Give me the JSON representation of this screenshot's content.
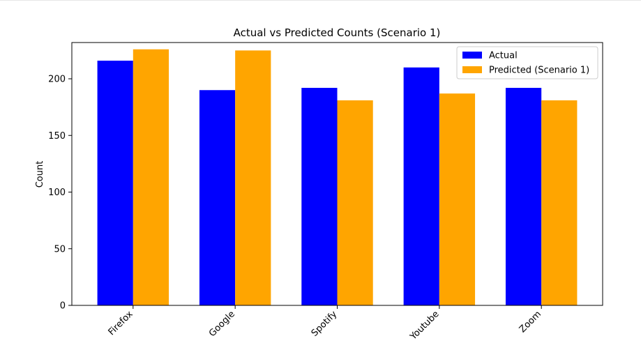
{
  "chart_data": {
    "type": "bar",
    "title": "Actual vs Predicted Counts (Scenario 1)",
    "xlabel": "",
    "ylabel": "Count",
    "categories": [
      "Firefox",
      "Google",
      "Spotify",
      "Youtube",
      "Zoom"
    ],
    "series": [
      {
        "name": "Actual",
        "color": "#0000ff",
        "values": [
          216,
          190,
          192,
          210,
          192
        ]
      },
      {
        "name": "Predicted (Scenario 1)",
        "color": "#ffa500",
        "values": [
          226,
          225,
          181,
          187,
          181
        ]
      }
    ],
    "ylim": [
      0,
      232
    ],
    "yticks": [
      0,
      50,
      100,
      150,
      200
    ],
    "grid": false,
    "legend_position": "top-right",
    "x_tick_rotation": 45
  }
}
